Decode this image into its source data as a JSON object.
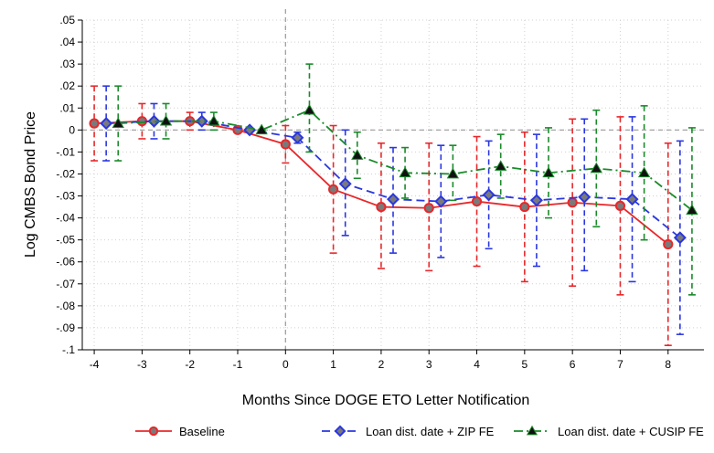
{
  "chart_data": {
    "type": "line",
    "title": "",
    "xlabel": "Months Since DOGE ETO Letter Notification",
    "ylabel": "Log CMBS Bond Price",
    "xlim": [
      -4.25,
      8.75
    ],
    "ylim": [
      -0.1,
      0.05
    ],
    "x_ticks": [
      -4,
      -3,
      -2,
      -1,
      0,
      1,
      2,
      3,
      4,
      5,
      6,
      7,
      8
    ],
    "y_ticks": [
      0.05,
      0.04,
      0.03,
      0.02,
      0.01,
      0,
      -0.01,
      -0.02,
      -0.03,
      -0.04,
      -0.05,
      -0.06,
      -0.07,
      -0.08,
      -0.09,
      -0.1
    ],
    "y_tick_labels": [
      ".05",
      ".04",
      ".03",
      ".02",
      ".01",
      "0",
      "-.01",
      "-.02",
      "-.03",
      "-.04",
      "-.05",
      "-.06",
      "-.07",
      "-.08",
      "-.09",
      "-.1"
    ],
    "grid": true,
    "reference_lines": {
      "x": 0,
      "y": 0
    },
    "legend_position": "bottom",
    "series": [
      {
        "name": "Baseline",
        "color": "#e8282b",
        "marker": "circle",
        "linestyle": "solid",
        "x": [
          -4,
          -3,
          -2,
          -1,
          0,
          1,
          2,
          3,
          4,
          5,
          6,
          7,
          8
        ],
        "values": [
          0.003,
          0.004,
          0.004,
          0.0,
          -0.0065,
          -0.027,
          -0.035,
          -0.0355,
          -0.0325,
          -0.035,
          -0.033,
          -0.0345,
          -0.052
        ],
        "ci_low": [
          -0.014,
          -0.004,
          0.0,
          0.0,
          -0.015,
          -0.056,
          -0.063,
          -0.064,
          -0.062,
          -0.069,
          -0.071,
          -0.075,
          -0.098
        ],
        "ci_high": [
          0.02,
          0.012,
          0.008,
          0.0,
          0.002,
          0.002,
          -0.006,
          -0.006,
          -0.003,
          -0.001,
          0.005,
          0.006,
          -0.006
        ]
      },
      {
        "name": "Loan dist. date + ZIP FE",
        "color": "#2a37e0",
        "marker": "diamond",
        "linestyle": "dash",
        "x": [
          -3.75,
          -2.75,
          -1.75,
          -0.75,
          0.25,
          1.25,
          2.25,
          3.25,
          4.25,
          5.25,
          6.25,
          7.25,
          8.25
        ],
        "values": [
          0.003,
          0.004,
          0.004,
          0.0,
          -0.0035,
          -0.0245,
          -0.0315,
          -0.0325,
          -0.0295,
          -0.032,
          -0.0305,
          -0.0315,
          -0.049
        ],
        "ci_low": [
          -0.014,
          -0.004,
          0.0,
          0.0,
          -0.006,
          -0.048,
          -0.056,
          -0.058,
          -0.054,
          -0.062,
          -0.064,
          -0.069,
          -0.093
        ],
        "ci_high": [
          0.02,
          0.012,
          0.008,
          0.0,
          -0.001,
          0.0,
          -0.008,
          -0.007,
          -0.005,
          -0.002,
          0.005,
          0.006,
          -0.005
        ]
      },
      {
        "name": "Loan dist. date + CUSIP FE",
        "color": "#1a8a2a",
        "marker": "triangle",
        "linestyle": "dashdot",
        "x": [
          -3.5,
          -2.5,
          -1.5,
          -0.5,
          0.5,
          1.5,
          2.5,
          3.5,
          4.5,
          5.5,
          6.5,
          7.5,
          8.5
        ],
        "values": [
          0.003,
          0.004,
          0.004,
          0.0,
          0.009,
          -0.0115,
          -0.0195,
          -0.02,
          -0.0165,
          -0.0195,
          -0.0175,
          -0.0195,
          -0.0365
        ],
        "ci_low": [
          -0.014,
          -0.004,
          0.0,
          0.0,
          -0.01,
          -0.022,
          -0.031,
          -0.032,
          -0.031,
          -0.04,
          -0.044,
          -0.05,
          -0.075
        ],
        "ci_high": [
          0.02,
          0.012,
          0.008,
          0.0,
          0.03,
          -0.001,
          -0.008,
          -0.007,
          -0.002,
          0.001,
          0.009,
          0.011,
          0.001
        ]
      }
    ]
  }
}
